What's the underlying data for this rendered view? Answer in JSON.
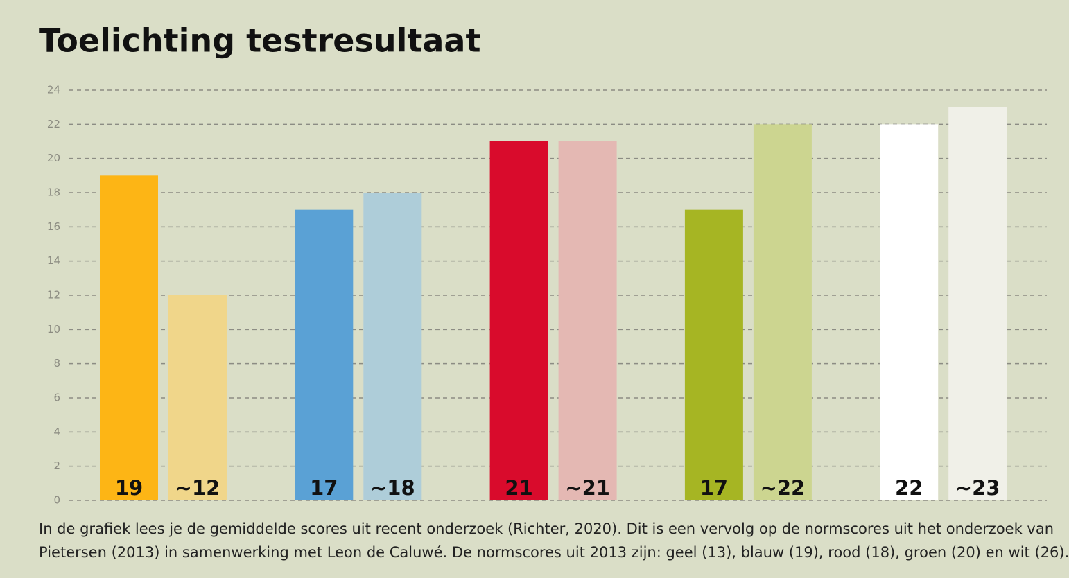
{
  "chart_data": {
    "type": "bar",
    "title": "Toelichting testresultaat",
    "categories": [
      null,
      null,
      null,
      null,
      null
    ],
    "series": [
      {
        "colors": [
          "#fdb515",
          "#5aa1d5",
          "#d90b2c",
          "#a6b523",
          "#ffffff"
        ],
        "values": [
          19,
          17,
          21,
          17,
          22
        ]
      },
      {
        "colors": [
          "#f0d68a",
          "#aecdd9",
          "#e4b8b3",
          "#ccd590",
          "#f0f0e8"
        ],
        "values": [
          12,
          18,
          21,
          22,
          23
        ],
        "value_labels": [
          "~12",
          "~18",
          "~21",
          "~22",
          "~23"
        ]
      }
    ],
    "ylim": [
      0,
      24
    ],
    "yticks": [
      0,
      2,
      4,
      6,
      8,
      10,
      12,
      14,
      16,
      18,
      20,
      22,
      24
    ],
    "grid": true,
    "caption": [
      "In de grafiek lees je de gemiddelde scores uit recent onderzoek (Richter, 2020). Dit is een vervolg op de normscores uit het onderzoek van",
      "Pietersen (2013) in samenwerking met Leon de Caluwé. De normscores uit 2013 zijn: geel (13), blauw (19), rood (18), groen (20) en wit (26)."
    ]
  }
}
